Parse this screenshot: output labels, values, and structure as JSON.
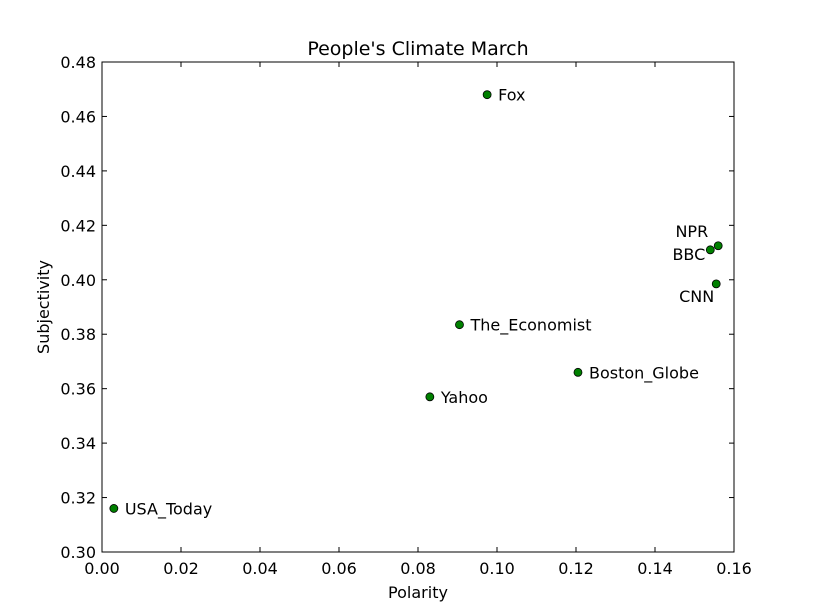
{
  "chart_data": {
    "type": "scatter",
    "title": "People's Climate March",
    "xlabel": "Polarity",
    "ylabel": "Subjectivity",
    "xlim": [
      0.0,
      0.16
    ],
    "ylim": [
      0.3,
      0.48
    ],
    "xticks": [
      "0.00",
      "0.02",
      "0.04",
      "0.06",
      "0.08",
      "0.10",
      "0.12",
      "0.14",
      "0.16"
    ],
    "yticks": [
      "0.30",
      "0.32",
      "0.34",
      "0.36",
      "0.38",
      "0.40",
      "0.42",
      "0.44",
      "0.46",
      "0.48"
    ],
    "grid": false,
    "marker_color": "#008000",
    "points": [
      {
        "label": "Fox",
        "x": 0.0975,
        "y": 0.468
      },
      {
        "label": "NPR",
        "x": 0.156,
        "y": 0.4125
      },
      {
        "label": "BBC",
        "x": 0.154,
        "y": 0.411
      },
      {
        "label": "CNN",
        "x": 0.1555,
        "y": 0.3985
      },
      {
        "label": "The_Economist",
        "x": 0.0905,
        "y": 0.3835
      },
      {
        "label": "Boston_Globe",
        "x": 0.1205,
        "y": 0.366
      },
      {
        "label": "Yahoo",
        "x": 0.083,
        "y": 0.357
      },
      {
        "label": "USA_Today",
        "x": 0.003,
        "y": 0.316
      }
    ]
  }
}
